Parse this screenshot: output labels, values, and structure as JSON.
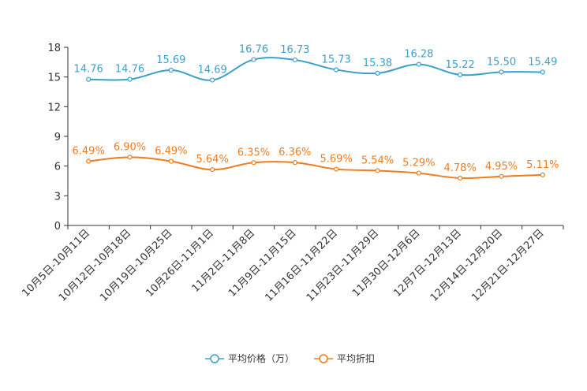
{
  "chart_data": {
    "type": "line",
    "title": "",
    "xlabel": "",
    "ylabel": "",
    "ylim": [
      0,
      18
    ],
    "yticks": [
      0,
      3,
      6,
      9,
      12,
      15,
      18
    ],
    "grid": false,
    "legend_position": "bottom-center",
    "categories": [
      "10月5日-10月11日",
      "10月12日-10月18日",
      "10月19日-10月25日",
      "10月26日-11月1日",
      "11月2日-11月8日",
      "11月9日-11月15日",
      "11月16日-11月22日",
      "11月23日-11月29日",
      "11月30日-12月6日",
      "12月7日-12月13日",
      "12月14日-12月20日",
      "12月21日-12月27日"
    ],
    "series": [
      {
        "name": "平均价格（万）",
        "color": "#3b9fce",
        "values": [
          14.76,
          14.76,
          15.69,
          14.69,
          16.76,
          16.73,
          15.73,
          15.38,
          16.28,
          15.22,
          15.5,
          15.49
        ],
        "labels": [
          "14.76",
          "14.76",
          "15.69",
          "14.69",
          "16.76",
          "16.73",
          "15.73",
          "15.38",
          "16.28",
          "15.22",
          "15.50",
          "15.49"
        ]
      },
      {
        "name": "平均折扣",
        "color": "#f07c1e",
        "values": [
          6.49,
          6.9,
          6.49,
          5.64,
          6.35,
          6.36,
          5.69,
          5.54,
          5.29,
          4.78,
          4.95,
          5.11
        ],
        "labels": [
          "6.49%",
          "6.90%",
          "6.49%",
          "5.64%",
          "6.35%",
          "6.36%",
          "5.69%",
          "5.54%",
          "5.29%",
          "4.78%",
          "4.95%",
          "5.11%"
        ]
      }
    ]
  }
}
